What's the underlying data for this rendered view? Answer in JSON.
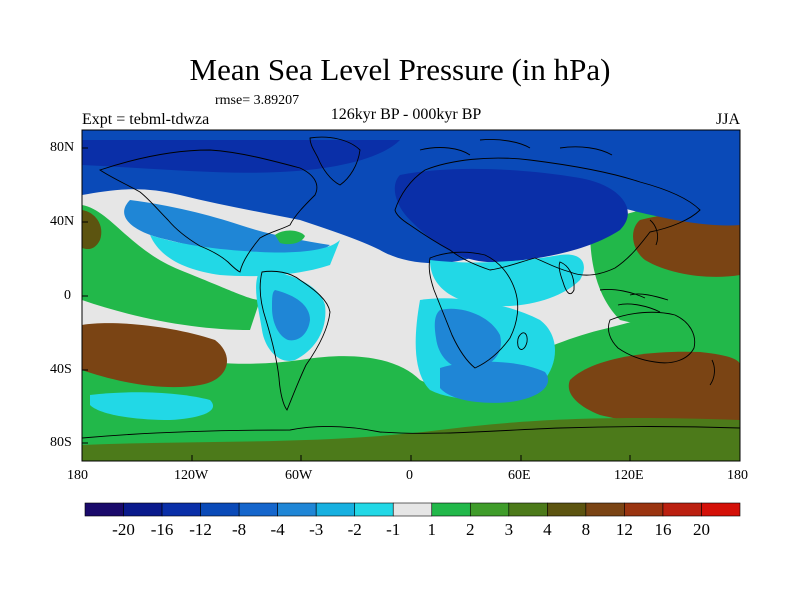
{
  "header": {
    "title": "Mean Sea Level Pressure (in hPa)",
    "rmse": "rmse= 3.89207",
    "experiment": "Expt = tebml-tdwza",
    "subtitle": "126kyr BP - 000kyr BP",
    "season": "JJA"
  },
  "axes": {
    "x_ticks": [
      "180",
      "120W",
      "60W",
      "0",
      "60E",
      "120E",
      "180"
    ],
    "y_ticks": [
      "80N",
      "40N",
      "0",
      "40S",
      "80S"
    ]
  },
  "colorbar": {
    "colors": [
      "#1a0a6b",
      "#0a1a8c",
      "#0a2fa8",
      "#0a4ab8",
      "#1566cc",
      "#1f86d6",
      "#17b0e0",
      "#22d8e6",
      "#e6e6e6",
      "#22b84a",
      "#3f9c2a",
      "#4c7a1a",
      "#5c5410",
      "#7a4414",
      "#9a3410",
      "#bb2010",
      "#d41008"
    ],
    "labels": [
      "-20",
      "-16",
      "-12",
      "-8",
      "-4",
      "-3",
      "-2",
      "-1",
      "1",
      "2",
      "3",
      "4",
      "8",
      "12",
      "16",
      "20"
    ]
  },
  "map_regions": {
    "arctic_negative": "#0a4ab8",
    "eurasia_negative": "#0a2fa8",
    "tropics_neutral": "#e6e6e6",
    "cyan_anomaly": "#22d8e6",
    "lightblue_anomaly": "#1f86d6",
    "southern_ocean_positive": "#22b84a",
    "midlat_positive": "#5c5410",
    "pacific_positive": "#7a4414"
  }
}
